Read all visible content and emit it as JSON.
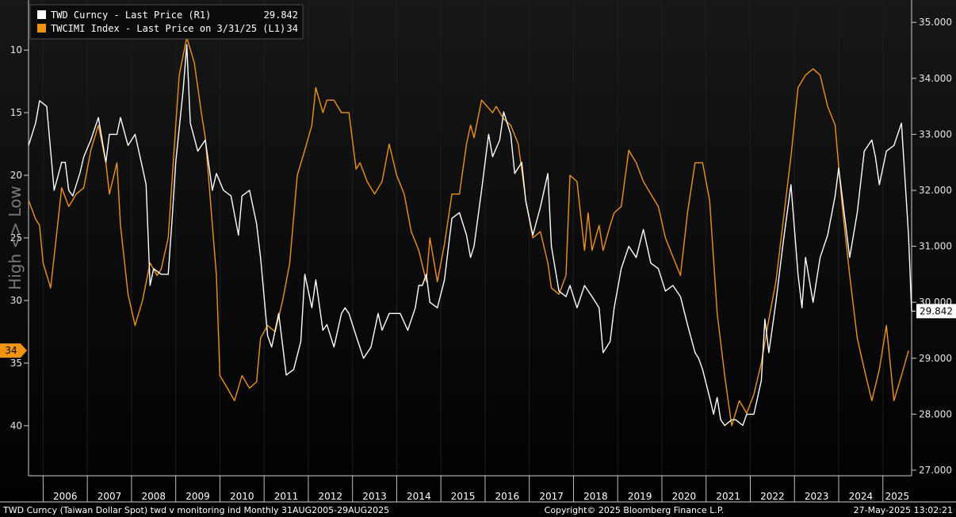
{
  "footer": {
    "left": "TWD Curncy (Taiwan Dollar Spot) twd v monitoring ind  Monthly 31AUG2005-29AUG2025",
    "center": "Copyright© 2025 Bloomberg Finance L.P.",
    "right": "27-May-2025 13:02:21"
  },
  "colors": {
    "background_top": "#171717",
    "twd": "#ffffff",
    "twcimi": "#f0940f"
  },
  "chart_data": {
    "type": "line",
    "x_range": [
      2005.67,
      2025.65
    ],
    "year_labels": [
      "2006",
      "2007",
      "2008",
      "2009",
      "2010",
      "2011",
      "2012",
      "2013",
      "2014",
      "2015",
      "2016",
      "2017",
      "2018",
      "2019",
      "2020",
      "2021",
      "2022",
      "2023",
      "2024",
      "2025"
    ],
    "left_axis": {
      "label": "High <> Low",
      "inverted": true,
      "range": [
        6,
        44
      ],
      "ticks": [
        10,
        15,
        20,
        25,
        30,
        35,
        40
      ]
    },
    "right_axis": {
      "range": [
        26.9,
        35.4
      ],
      "ticks": [
        "27.000",
        "28.000",
        "29.000",
        "30.000",
        "31.000",
        "32.000",
        "33.000",
        "34.000",
        "35.000"
      ]
    },
    "legend": {
      "placement": "top-left"
    },
    "series": [
      {
        "name": "TWD Curncy - Last Price (R1)",
        "last_label": "29.842",
        "axis": "right",
        "color": "#ffffff",
        "points": [
          [
            2005.67,
            32.8
          ],
          [
            2005.83,
            33.2
          ],
          [
            2005.92,
            33.6
          ],
          [
            2006.08,
            33.5
          ],
          [
            2006.25,
            32.0
          ],
          [
            2006.42,
            32.5
          ],
          [
            2006.5,
            32.5
          ],
          [
            2006.58,
            32.0
          ],
          [
            2006.67,
            31.9
          ],
          [
            2006.83,
            32.3
          ],
          [
            2006.92,
            32.6
          ],
          [
            2007.08,
            32.9
          ],
          [
            2007.25,
            33.3
          ],
          [
            2007.42,
            32.5
          ],
          [
            2007.5,
            33.0
          ],
          [
            2007.67,
            33.0
          ],
          [
            2007.75,
            33.3
          ],
          [
            2007.92,
            32.8
          ],
          [
            2008.08,
            33.0
          ],
          [
            2008.25,
            32.4
          ],
          [
            2008.33,
            32.1
          ],
          [
            2008.42,
            30.3
          ],
          [
            2008.5,
            30.6
          ],
          [
            2008.67,
            30.5
          ],
          [
            2008.83,
            30.5
          ],
          [
            2008.92,
            31.5
          ],
          [
            2009.0,
            32.5
          ],
          [
            2009.17,
            33.8
          ],
          [
            2009.25,
            34.6
          ],
          [
            2009.33,
            33.2
          ],
          [
            2009.5,
            32.7
          ],
          [
            2009.67,
            32.9
          ],
          [
            2009.83,
            32.0
          ],
          [
            2009.92,
            32.3
          ],
          [
            2010.08,
            32.0
          ],
          [
            2010.25,
            31.9
          ],
          [
            2010.42,
            31.2
          ],
          [
            2010.5,
            31.9
          ],
          [
            2010.67,
            32.0
          ],
          [
            2010.83,
            31.4
          ],
          [
            2010.92,
            30.8
          ],
          [
            2011.08,
            29.4
          ],
          [
            2011.17,
            29.2
          ],
          [
            2011.33,
            29.8
          ],
          [
            2011.5,
            28.7
          ],
          [
            2011.67,
            28.8
          ],
          [
            2011.83,
            29.3
          ],
          [
            2011.92,
            30.5
          ],
          [
            2012.08,
            29.9
          ],
          [
            2012.17,
            30.4
          ],
          [
            2012.33,
            29.5
          ],
          [
            2012.42,
            29.6
          ],
          [
            2012.58,
            29.2
          ],
          [
            2012.75,
            29.8
          ],
          [
            2012.83,
            29.9
          ],
          [
            2012.92,
            29.8
          ],
          [
            2013.08,
            29.4
          ],
          [
            2013.25,
            29.0
          ],
          [
            2013.42,
            29.2
          ],
          [
            2013.58,
            29.8
          ],
          [
            2013.67,
            29.5
          ],
          [
            2013.83,
            29.8
          ],
          [
            2014.08,
            29.8
          ],
          [
            2014.25,
            29.5
          ],
          [
            2014.42,
            29.9
          ],
          [
            2014.5,
            30.3
          ],
          [
            2014.58,
            30.3
          ],
          [
            2014.67,
            30.5
          ],
          [
            2014.75,
            30.0
          ],
          [
            2014.92,
            29.9
          ],
          [
            2015.08,
            30.4
          ],
          [
            2015.25,
            31.5
          ],
          [
            2015.42,
            31.6
          ],
          [
            2015.58,
            31.2
          ],
          [
            2015.67,
            30.8
          ],
          [
            2015.75,
            31.0
          ],
          [
            2015.92,
            32.0
          ],
          [
            2016.08,
            33.0
          ],
          [
            2016.17,
            32.6
          ],
          [
            2016.33,
            32.9
          ],
          [
            2016.42,
            33.4
          ],
          [
            2016.58,
            33.0
          ],
          [
            2016.67,
            32.3
          ],
          [
            2016.83,
            32.5
          ],
          [
            2016.92,
            31.8
          ],
          [
            2017.08,
            31.2
          ],
          [
            2017.25,
            31.7
          ],
          [
            2017.42,
            32.3
          ],
          [
            2017.5,
            31.0
          ],
          [
            2017.67,
            30.2
          ],
          [
            2017.83,
            30.1
          ],
          [
            2017.92,
            30.3
          ],
          [
            2018.08,
            29.9
          ],
          [
            2018.25,
            30.3
          ],
          [
            2018.42,
            30.1
          ],
          [
            2018.58,
            29.9
          ],
          [
            2018.67,
            29.1
          ],
          [
            2018.75,
            29.2
          ],
          [
            2018.83,
            29.3
          ],
          [
            2018.92,
            29.9
          ],
          [
            2019.08,
            30.6
          ],
          [
            2019.25,
            31.0
          ],
          [
            2019.42,
            30.8
          ],
          [
            2019.58,
            31.3
          ],
          [
            2019.75,
            30.7
          ],
          [
            2019.92,
            30.6
          ],
          [
            2020.08,
            30.2
          ],
          [
            2020.25,
            30.3
          ],
          [
            2020.42,
            30.1
          ],
          [
            2020.58,
            29.6
          ],
          [
            2020.75,
            29.1
          ],
          [
            2020.83,
            29.0
          ],
          [
            2020.92,
            28.8
          ],
          [
            2021.08,
            28.3
          ],
          [
            2021.17,
            28.0
          ],
          [
            2021.25,
            28.3
          ],
          [
            2021.33,
            27.9
          ],
          [
            2021.42,
            27.8
          ],
          [
            2021.58,
            27.9
          ],
          [
            2021.67,
            27.9
          ],
          [
            2021.83,
            27.8
          ],
          [
            2021.92,
            28.0
          ],
          [
            2022.08,
            28.0
          ],
          [
            2022.25,
            28.6
          ],
          [
            2022.33,
            29.7
          ],
          [
            2022.42,
            29.1
          ],
          [
            2022.58,
            30.0
          ],
          [
            2022.75,
            31.1
          ],
          [
            2022.92,
            32.1
          ],
          [
            2023.08,
            30.5
          ],
          [
            2023.17,
            29.9
          ],
          [
            2023.25,
            30.8
          ],
          [
            2023.42,
            30.0
          ],
          [
            2023.58,
            30.8
          ],
          [
            2023.75,
            31.2
          ],
          [
            2023.92,
            31.9
          ],
          [
            2024.0,
            32.4
          ],
          [
            2024.17,
            31.3
          ],
          [
            2024.25,
            30.8
          ],
          [
            2024.42,
            31.6
          ],
          [
            2024.58,
            32.7
          ],
          [
            2024.75,
            32.9
          ],
          [
            2024.83,
            32.6
          ],
          [
            2024.92,
            32.1
          ],
          [
            2025.08,
            32.7
          ],
          [
            2025.25,
            32.8
          ],
          [
            2025.42,
            33.2
          ],
          [
            2025.58,
            31.2
          ],
          [
            2025.65,
            29.842
          ]
        ]
      },
      {
        "name": "TWCIMI Index - Last Price on 3/31/25 (L1)",
        "last_label": "34",
        "axis": "left",
        "color": "#f0940f",
        "points": [
          [
            2005.67,
            22.0
          ],
          [
            2005.83,
            23.5
          ],
          [
            2005.92,
            24.0
          ],
          [
            2006.0,
            27.0
          ],
          [
            2006.17,
            29.0
          ],
          [
            2006.25,
            26.5
          ],
          [
            2006.42,
            21.0
          ],
          [
            2006.58,
            22.5
          ],
          [
            2006.75,
            21.5
          ],
          [
            2006.92,
            21.0
          ],
          [
            2007.08,
            18.0
          ],
          [
            2007.25,
            16.0
          ],
          [
            2007.42,
            19.0
          ],
          [
            2007.5,
            21.5
          ],
          [
            2007.67,
            19.0
          ],
          [
            2007.75,
            24.0
          ],
          [
            2007.92,
            29.5
          ],
          [
            2008.08,
            32.0
          ],
          [
            2008.25,
            30.0
          ],
          [
            2008.42,
            27.0
          ],
          [
            2008.58,
            28.0
          ],
          [
            2008.67,
            27.5
          ],
          [
            2008.83,
            25.0
          ],
          [
            2009.0,
            16.0
          ],
          [
            2009.08,
            12.0
          ],
          [
            2009.25,
            9.0
          ],
          [
            2009.42,
            11.0
          ],
          [
            2009.58,
            15.0
          ],
          [
            2009.67,
            17.0
          ],
          [
            2009.75,
            20.5
          ],
          [
            2009.92,
            28.0
          ],
          [
            2010.0,
            36.0
          ],
          [
            2010.17,
            37.0
          ],
          [
            2010.33,
            38.0
          ],
          [
            2010.5,
            36.0
          ],
          [
            2010.67,
            37.0
          ],
          [
            2010.83,
            36.5
          ],
          [
            2010.92,
            33.0
          ],
          [
            2011.08,
            32.0
          ],
          [
            2011.25,
            32.5
          ],
          [
            2011.42,
            30.0
          ],
          [
            2011.58,
            27.0
          ],
          [
            2011.75,
            20.0
          ],
          [
            2011.92,
            18.0
          ],
          [
            2012.08,
            16.0
          ],
          [
            2012.17,
            13.0
          ],
          [
            2012.33,
            15.0
          ],
          [
            2012.42,
            14.0
          ],
          [
            2012.58,
            14.0
          ],
          [
            2012.75,
            15.0
          ],
          [
            2012.92,
            15.0
          ],
          [
            2013.08,
            19.5
          ],
          [
            2013.17,
            19.0
          ],
          [
            2013.33,
            20.5
          ],
          [
            2013.5,
            21.5
          ],
          [
            2013.67,
            20.5
          ],
          [
            2013.83,
            17.5
          ],
          [
            2014.0,
            20.0
          ],
          [
            2014.17,
            21.5
          ],
          [
            2014.33,
            24.5
          ],
          [
            2014.5,
            26.0
          ],
          [
            2014.67,
            28.5
          ],
          [
            2014.75,
            25.0
          ],
          [
            2014.92,
            28.5
          ],
          [
            2015.08,
            25.5
          ],
          [
            2015.25,
            21.5
          ],
          [
            2015.42,
            21.5
          ],
          [
            2015.58,
            17.5
          ],
          [
            2015.67,
            16.0
          ],
          [
            2015.75,
            17.0
          ],
          [
            2015.92,
            14.0
          ],
          [
            2016.17,
            15.0
          ],
          [
            2016.25,
            14.5
          ],
          [
            2016.42,
            15.5
          ],
          [
            2016.58,
            16.0
          ],
          [
            2016.75,
            17.5
          ],
          [
            2016.92,
            22.0
          ],
          [
            2017.08,
            25.0
          ],
          [
            2017.25,
            24.5
          ],
          [
            2017.42,
            27.0
          ],
          [
            2017.5,
            29.0
          ],
          [
            2017.67,
            29.5
          ],
          [
            2017.83,
            28.0
          ],
          [
            2017.92,
            20.0
          ],
          [
            2018.08,
            20.5
          ],
          [
            2018.25,
            26.0
          ],
          [
            2018.33,
            23.0
          ],
          [
            2018.42,
            26.0
          ],
          [
            2018.58,
            24.0
          ],
          [
            2018.67,
            26.0
          ],
          [
            2018.83,
            24.0
          ],
          [
            2018.92,
            23.0
          ],
          [
            2019.08,
            22.5
          ],
          [
            2019.25,
            18.0
          ],
          [
            2019.42,
            19.0
          ],
          [
            2019.58,
            20.5
          ],
          [
            2019.75,
            21.5
          ],
          [
            2019.92,
            22.5
          ],
          [
            2020.08,
            25.0
          ],
          [
            2020.25,
            26.5
          ],
          [
            2020.42,
            28.0
          ],
          [
            2020.58,
            23.0
          ],
          [
            2020.75,
            19.0
          ],
          [
            2020.92,
            19.0
          ],
          [
            2021.08,
            22.0
          ],
          [
            2021.25,
            31.0
          ],
          [
            2021.42,
            36.0
          ],
          [
            2021.5,
            38.0
          ],
          [
            2021.58,
            40.0
          ],
          [
            2021.75,
            38.0
          ],
          [
            2021.92,
            39.0
          ],
          [
            2022.08,
            37.5
          ],
          [
            2022.25,
            35.0
          ],
          [
            2022.42,
            31.5
          ],
          [
            2022.58,
            28.5
          ],
          [
            2022.75,
            23.5
          ],
          [
            2022.92,
            18.5
          ],
          [
            2023.08,
            13.0
          ],
          [
            2023.25,
            12.0
          ],
          [
            2023.42,
            11.5
          ],
          [
            2023.58,
            12.0
          ],
          [
            2023.75,
            14.5
          ],
          [
            2023.92,
            16.0
          ],
          [
            2024.08,
            22.5
          ],
          [
            2024.25,
            28.0
          ],
          [
            2024.42,
            33.0
          ],
          [
            2024.58,
            35.5
          ],
          [
            2024.75,
            38.0
          ],
          [
            2024.92,
            35.5
          ],
          [
            2025.08,
            32.0
          ],
          [
            2025.25,
            38.0
          ],
          [
            2025.42,
            36.0
          ],
          [
            2025.58,
            34.0
          ]
        ]
      }
    ]
  }
}
